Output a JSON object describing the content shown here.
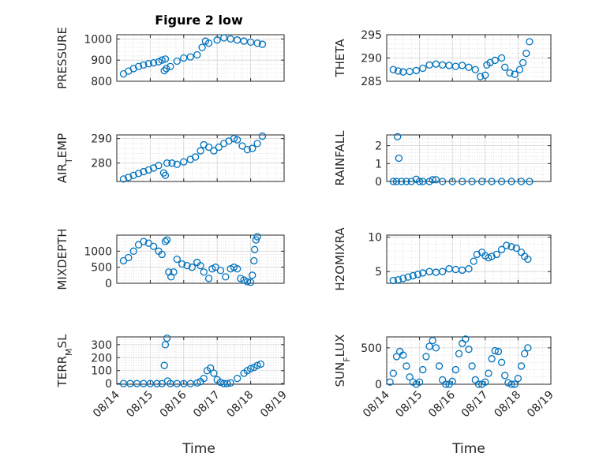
{
  "figure": {
    "title": "Figure 2 low",
    "marker_color": "#0072BD",
    "x_axis_label": "Time",
    "x_ticks": [
      "08/14",
      "08/15",
      "08/16",
      "08/17",
      "08/18",
      "08/19"
    ]
  },
  "chart_data": [
    {
      "type": "scatter",
      "name": "PRESSURE",
      "ylabel": "PRESSURE",
      "ylim": [
        800,
        1020
      ],
      "yticks": [
        800,
        900,
        1000
      ],
      "xlim": [
        0,
        5
      ],
      "grid": true,
      "x": [
        0.2,
        0.35,
        0.5,
        0.65,
        0.8,
        0.95,
        1.1,
        1.25,
        1.35,
        1.45,
        1.6,
        1.8,
        2.0,
        2.2,
        2.4,
        2.55,
        2.65,
        2.75,
        3.0,
        3.2,
        3.4,
        3.6,
        3.8,
        4.0,
        4.2,
        4.35,
        1.42,
        1.48
      ],
      "y": [
        835,
        848,
        860,
        870,
        877,
        883,
        887,
        892,
        900,
        905,
        870,
        895,
        910,
        915,
        925,
        960,
        990,
        980,
        995,
        1005,
        1000,
        995,
        990,
        985,
        980,
        975,
        850,
        860
      ]
    },
    {
      "type": "scatter",
      "name": "THETA",
      "ylabel": "THETA",
      "ylim": [
        285,
        295
      ],
      "yticks": [
        285,
        290,
        295
      ],
      "xlim": [
        0,
        5
      ],
      "grid": true,
      "x": [
        0.2,
        0.35,
        0.5,
        0.7,
        0.9,
        1.1,
        1.3,
        1.5,
        1.7,
        1.9,
        2.1,
        2.3,
        2.5,
        2.7,
        2.85,
        3.0,
        3.05,
        3.15,
        3.3,
        3.5,
        3.6,
        3.75,
        3.9,
        4.05,
        4.15,
        4.25,
        4.35
      ],
      "y": [
        287.5,
        287.2,
        287.0,
        287.1,
        287.3,
        287.8,
        288.5,
        288.7,
        288.5,
        288.4,
        288.2,
        288.4,
        288.0,
        287.5,
        286.0,
        286.3,
        288.5,
        289.0,
        289.5,
        290.0,
        288.0,
        286.8,
        286.5,
        287.5,
        289.0,
        291.0,
        293.5
      ]
    },
    {
      "type": "scatter",
      "name": "AIR_TEMP",
      "ylabel": "AIR_TEMP",
      "ylim": [
        272.5,
        291.5
      ],
      "yticks": [
        280,
        290
      ],
      "xlim": [
        0,
        5
      ],
      "grid": true,
      "x": [
        0.2,
        0.35,
        0.5,
        0.65,
        0.8,
        0.95,
        1.1,
        1.25,
        1.4,
        1.45,
        1.5,
        1.65,
        1.8,
        2.0,
        2.2,
        2.35,
        2.5,
        2.6,
        2.75,
        2.9,
        3.05,
        3.2,
        3.35,
        3.5,
        3.6,
        3.75,
        3.9,
        4.05,
        4.2,
        4.35
      ],
      "y": [
        273.5,
        274.2,
        275.0,
        275.8,
        276.5,
        277.2,
        278.0,
        279.0,
        276.0,
        275.0,
        280.0,
        280.0,
        279.5,
        280.5,
        281.5,
        282.5,
        285.0,
        287.5,
        286.5,
        285.0,
        286.5,
        288.0,
        289.0,
        290.0,
        289.5,
        287.0,
        285.5,
        286.0,
        288.0,
        291.0
      ]
    },
    {
      "type": "scatter",
      "name": "RAINFALL",
      "ylabel": "RAINFALL",
      "ylim": [
        0,
        2.6
      ],
      "yticks": [
        0,
        1,
        2
      ],
      "xlim": [
        0,
        5
      ],
      "grid": true,
      "x": [
        0.2,
        0.3,
        0.33,
        0.37,
        0.45,
        0.6,
        0.75,
        0.9,
        1.0,
        1.1,
        1.3,
        1.4,
        1.5,
        1.7,
        2.0,
        2.3,
        2.6,
        2.9,
        3.2,
        3.5,
        3.8,
        4.1,
        4.35
      ],
      "y": [
        0,
        0,
        2.5,
        1.3,
        0,
        0,
        0,
        0.12,
        0,
        0,
        0,
        0.1,
        0.1,
        0,
        0,
        0,
        0,
        0,
        0,
        0,
        0,
        0,
        0
      ]
    },
    {
      "type": "scatter",
      "name": "MIXDEPTH",
      "ylabel": "MIXDEPTH",
      "ylim": [
        0,
        1500
      ],
      "yticks": [
        0,
        500,
        1000
      ],
      "xlim": [
        0,
        5
      ],
      "grid": true,
      "x": [
        0.2,
        0.35,
        0.5,
        0.65,
        0.8,
        0.95,
        1.1,
        1.25,
        1.35,
        1.45,
        1.5,
        1.55,
        1.62,
        1.7,
        1.8,
        1.95,
        2.1,
        2.25,
        2.4,
        2.5,
        2.6,
        2.75,
        2.85,
        2.95,
        3.1,
        3.25,
        3.4,
        3.5,
        3.6,
        3.7,
        3.8,
        3.9,
        4.0,
        4.05,
        4.1,
        4.12,
        4.16,
        4.2
      ],
      "y": [
        700,
        800,
        1000,
        1200,
        1300,
        1250,
        1150,
        1000,
        900,
        1300,
        1350,
        350,
        200,
        350,
        750,
        600,
        550,
        500,
        650,
        550,
        350,
        150,
        450,
        500,
        400,
        200,
        450,
        500,
        450,
        150,
        100,
        50,
        30,
        250,
        700,
        1050,
        1350,
        1450
      ]
    },
    {
      "type": "scatter",
      "name": "H2OMIXRA",
      "ylabel": "H2OMIXRA",
      "ylim": [
        3.3,
        10.3
      ],
      "yticks": [
        5,
        10
      ],
      "xlim": [
        0,
        5
      ],
      "grid": true,
      "x": [
        0.2,
        0.35,
        0.5,
        0.65,
        0.8,
        0.95,
        1.1,
        1.3,
        1.5,
        1.7,
        1.9,
        2.1,
        2.3,
        2.5,
        2.65,
        2.75,
        2.9,
        3.0,
        3.1,
        3.2,
        3.35,
        3.5,
        3.65,
        3.8,
        3.95,
        4.1,
        4.2,
        4.3
      ],
      "y": [
        3.7,
        3.8,
        4.0,
        4.2,
        4.4,
        4.6,
        4.8,
        5.0,
        4.9,
        5.0,
        5.4,
        5.3,
        5.2,
        5.4,
        6.5,
        7.5,
        7.8,
        7.3,
        7.0,
        7.2,
        7.5,
        8.2,
        8.8,
        8.6,
        8.4,
        7.8,
        7.2,
        6.8
      ]
    },
    {
      "type": "scatter",
      "name": "TERR_MSL",
      "ylabel": "TERR_MSL",
      "ylim": [
        -5,
        360
      ],
      "yticks": [
        0,
        100,
        200,
        300
      ],
      "xlim": [
        0,
        5
      ],
      "grid": true,
      "x": [
        0.2,
        0.4,
        0.6,
        0.8,
        1.0,
        1.2,
        1.35,
        1.42,
        1.45,
        1.5,
        1.52,
        1.6,
        1.8,
        2.0,
        2.2,
        2.4,
        2.5,
        2.6,
        2.7,
        2.8,
        2.9,
        3.0,
        3.1,
        3.2,
        3.3,
        3.4,
        3.6,
        3.8,
        3.9,
        4.0,
        4.1,
        4.2,
        4.3
      ],
      "y": [
        0,
        0,
        0,
        0,
        0,
        0,
        0,
        140,
        300,
        350,
        20,
        0,
        0,
        0,
        0,
        5,
        15,
        40,
        100,
        120,
        80,
        30,
        10,
        0,
        0,
        5,
        40,
        80,
        100,
        115,
        125,
        140,
        150
      ]
    },
    {
      "type": "scatter",
      "name": "SUN_FLUX",
      "ylabel": "SUN_FLUX",
      "ylim": [
        0,
        650
      ],
      "yticks": [
        0,
        500
      ],
      "xlim": [
        0,
        5
      ],
      "grid": true,
      "x": [
        0.1,
        0.2,
        0.3,
        0.4,
        0.5,
        0.6,
        0.7,
        0.8,
        0.9,
        1.0,
        1.1,
        1.2,
        1.3,
        1.4,
        1.5,
        1.6,
        1.7,
        1.8,
        1.9,
        2.0,
        2.1,
        2.2,
        2.3,
        2.4,
        2.5,
        2.6,
        2.7,
        2.8,
        2.9,
        3.0,
        3.1,
        3.2,
        3.3,
        3.4,
        3.5,
        3.6,
        3.7,
        3.8,
        3.9,
        4.0,
        4.1,
        4.2,
        4.3
      ],
      "y": [
        30,
        150,
        380,
        450,
        400,
        250,
        100,
        30,
        0,
        30,
        200,
        380,
        520,
        600,
        500,
        250,
        60,
        0,
        0,
        40,
        200,
        420,
        560,
        620,
        480,
        250,
        60,
        0,
        0,
        30,
        150,
        350,
        460,
        450,
        300,
        120,
        20,
        0,
        0,
        80,
        250,
        420,
        500
      ]
    }
  ]
}
